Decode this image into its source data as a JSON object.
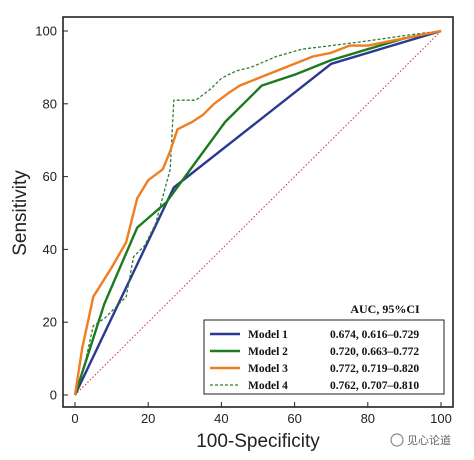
{
  "chart_data": {
    "type": "line",
    "xlabel": "100-Specificity",
    "ylabel": "Sensitivity",
    "xlim": [
      0,
      100
    ],
    "ylim": [
      0,
      100
    ],
    "xticks": [
      0,
      20,
      40,
      60,
      80,
      100
    ],
    "yticks": [
      0,
      20,
      40,
      60,
      80,
      100
    ],
    "grid": false,
    "legend": {
      "placement": "bottom-right",
      "header": "AUC, 95%CI"
    },
    "reference_line": {
      "x": [
        0,
        100
      ],
      "y": [
        0,
        100
      ],
      "style": "dotted",
      "color": "#c0392b"
    },
    "series": [
      {
        "name": "Model 1",
        "auc": "0.674, 0.616–0.729",
        "color": "#2b3990",
        "style": "solid",
        "x": [
          0,
          27,
          70,
          100
        ],
        "y": [
          0,
          57,
          91,
          100
        ]
      },
      {
        "name": "Model 2",
        "auc": "0.720, 0.663–0.772",
        "color": "#1e7a1e",
        "style": "solid",
        "x": [
          0,
          8,
          17,
          25,
          33,
          41,
          51,
          60,
          70,
          80,
          90,
          100
        ],
        "y": [
          0,
          25,
          46,
          53,
          64,
          75,
          85,
          88,
          92,
          95,
          98,
          100
        ]
      },
      {
        "name": "Model 3",
        "auc": "0.772, 0.719–0.820",
        "color": "#f07d20",
        "style": "solid",
        "x": [
          0,
          2,
          5,
          10,
          14,
          17,
          20,
          24,
          26,
          28,
          32,
          35,
          38,
          42,
          45,
          50,
          55,
          60,
          65,
          70,
          75,
          80,
          85,
          90,
          95,
          100
        ],
        "y": [
          0,
          13,
          27,
          35,
          42,
          54,
          59,
          62,
          67,
          73,
          75,
          77,
          80,
          83,
          85,
          87,
          89,
          91,
          93,
          94,
          96,
          96,
          97,
          98,
          99,
          100
        ]
      },
      {
        "name": "Model 4",
        "auc": "0.762, 0.707–0.810",
        "color": "#2e7d32",
        "style": "dashed",
        "x": [
          0,
          3,
          5,
          8,
          11,
          14,
          16,
          19,
          22,
          26,
          27,
          29,
          33,
          37,
          40,
          44,
          48,
          55,
          62,
          70,
          78,
          85,
          92,
          100
        ],
        "y": [
          0,
          10,
          19,
          21,
          24,
          27,
          38,
          41,
          47,
          62,
          81,
          81,
          81,
          84,
          87,
          89,
          90,
          93,
          95,
          96,
          97,
          98,
          99,
          100
        ]
      }
    ]
  },
  "watermark": "见心论道"
}
